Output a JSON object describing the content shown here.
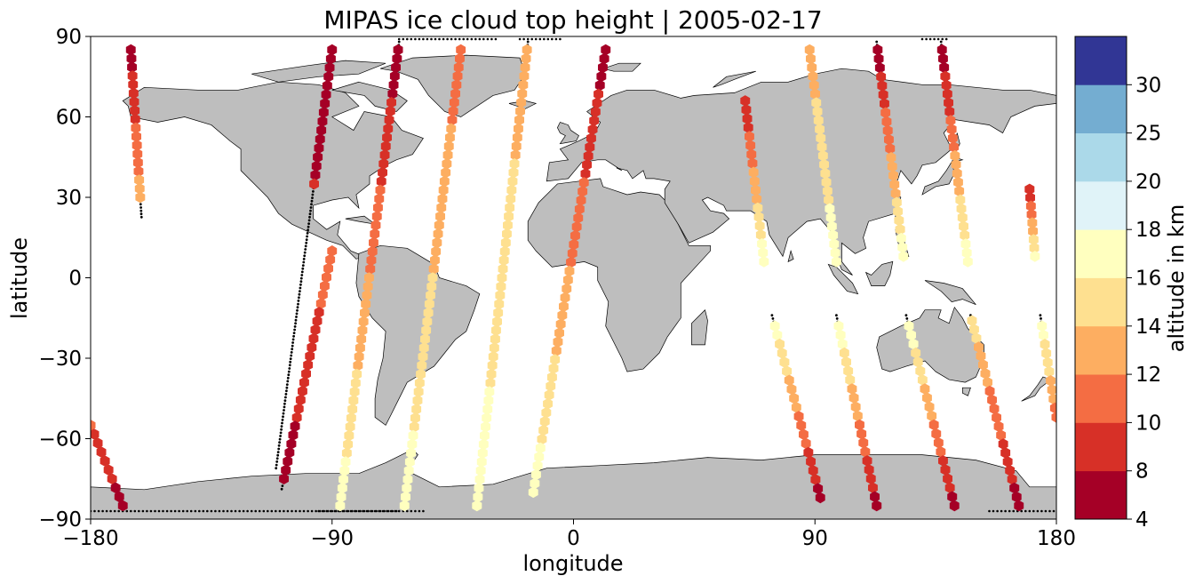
{
  "chart_data": {
    "type": "scatter",
    "title": "MIPAS ice cloud top height | 2005-02-17",
    "xlabel": "longitude",
    "ylabel": "latitude",
    "xlim": [
      -180,
      180
    ],
    "ylim": [
      -90,
      90
    ],
    "xticks": [
      "−180",
      "−90",
      "0",
      "90",
      "180"
    ],
    "xtick_values": [
      -180,
      -90,
      0,
      90,
      180
    ],
    "yticks": [
      "−90",
      "−60",
      "−30",
      "0",
      "30",
      "60",
      "90"
    ],
    "ytick_values": [
      -90,
      -60,
      -30,
      0,
      30,
      60,
      90
    ],
    "grid": false,
    "colorbar": {
      "label": "altitude in km",
      "bounds": [
        4,
        8,
        10,
        12,
        14,
        16,
        18,
        20,
        25,
        30
      ],
      "tick_labels": [
        "4",
        "8",
        "10",
        "12",
        "14",
        "16",
        "18",
        "20",
        "25",
        "30"
      ],
      "colors": [
        "#a50026",
        "#d73027",
        "#f46d43",
        "#fdae61",
        "#fee090",
        "#ffffbf",
        "#e0f3f8",
        "#abd9e9",
        "#74add1",
        "#313695"
      ]
    },
    "colors": {
      "land": "#bebebe",
      "coast": "#000000",
      "ocean": "#ffffff",
      "track_dots": "#000000"
    },
    "tracks": [
      {
        "lon0": -165,
        "lat0": 85,
        "lon1": -161,
        "lat1": 22,
        "cloud_lat": [
          85,
          30
        ],
        "alt": [
          7,
          13
        ]
      },
      {
        "lon0": -90,
        "lat0": 85,
        "lon1": -111,
        "lat1": -72,
        "cloud_lat": [
          85,
          35
        ],
        "alt": [
          7,
          8
        ]
      },
      {
        "lon0": -90,
        "lat0": 10,
        "lon1": -109,
        "lat1": -80,
        "cloud_lat": [
          10,
          -75
        ],
        "alt": [
          11,
          7
        ]
      },
      {
        "lon0": -65,
        "lat0": 88,
        "lon1": -87,
        "lat1": -85,
        "cloud_lat": [
          85,
          -85
        ],
        "alt": [
          7,
          17
        ]
      },
      {
        "lon0": -42,
        "lat0": 85,
        "lon1": -63,
        "lat1": -85,
        "cloud_lat": [
          85,
          -85
        ],
        "alt": [
          11,
          17
        ]
      },
      {
        "lon0": -17,
        "lat0": 88,
        "lon1": -36,
        "lat1": -85,
        "cloud_lat": [
          85,
          -85
        ],
        "alt": [
          13,
          17
        ]
      },
      {
        "lon0": 12,
        "lat0": 85,
        "lon1": -15,
        "lat1": -80,
        "cloud_lat": [
          85,
          -80
        ],
        "alt": [
          7,
          17
        ]
      },
      {
        "lon0": 64,
        "lat0": 66,
        "lon1": 71,
        "lat1": 6,
        "cloud_lat": [
          66,
          6
        ],
        "alt": [
          8,
          17
        ]
      },
      {
        "lon0": 74,
        "lat0": -14,
        "lon1": 92,
        "lat1": -82,
        "cloud_lat": [
          -18,
          -82
        ],
        "alt": [
          17,
          7
        ]
      },
      {
        "lon0": 88,
        "lat0": 85,
        "lon1": 98,
        "lat1": 6,
        "cloud_lat": [
          85,
          6
        ],
        "alt": [
          13,
          17
        ]
      },
      {
        "lon0": 98,
        "lat0": -14,
        "lon1": 113,
        "lat1": -85,
        "cloud_lat": [
          -18,
          -85
        ],
        "alt": [
          17,
          7
        ]
      },
      {
        "lon0": 113,
        "lat0": 88,
        "lon1": 123,
        "lat1": 8,
        "cloud_lat": [
          85,
          8
        ],
        "alt": [
          7,
          17
        ]
      },
      {
        "lon0": 124,
        "lat0": -14,
        "lon1": 142,
        "lat1": -85,
        "cloud_lat": [
          -18,
          -85
        ],
        "alt": [
          17,
          7
        ]
      },
      {
        "lon0": 137,
        "lat0": 88,
        "lon1": 147,
        "lat1": 6,
        "cloud_lat": [
          85,
          6
        ],
        "alt": [
          7,
          17
        ]
      },
      {
        "lon0": 148,
        "lat0": -14,
        "lon1": 166,
        "lat1": -85,
        "cloud_lat": [
          -16,
          -85
        ],
        "alt": [
          15,
          7
        ]
      },
      {
        "lon0": 170,
        "lat0": 33,
        "lon1": 172,
        "lat1": 8,
        "cloud_lat": [
          33,
          8
        ],
        "alt": [
          9,
          16
        ]
      },
      {
        "lon0": 174,
        "lat0": -14,
        "lon1": 180,
        "lat1": -52,
        "cloud_lat": [
          -18,
          -52
        ],
        "alt": [
          17,
          11
        ]
      },
      {
        "lon0": -180,
        "lat0": -55,
        "lon1": -168,
        "lat1": -85,
        "cloud_lat": [
          -55,
          -85
        ],
        "alt": [
          10,
          7
        ]
      }
    ]
  }
}
